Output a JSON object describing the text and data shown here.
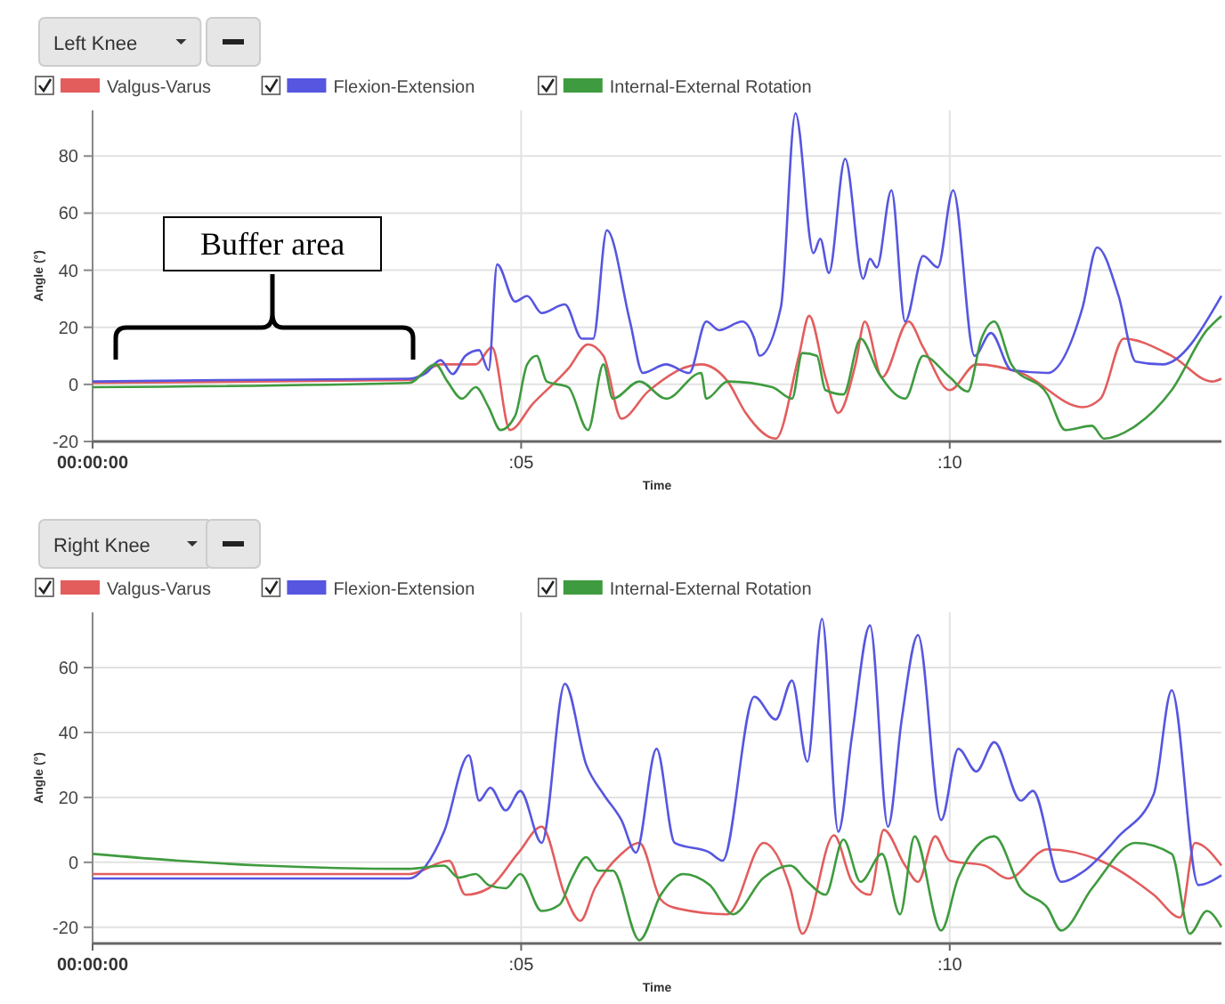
{
  "chart_data": [
    {
      "type": "line",
      "title": "Left Knee",
      "xlabel": "Time",
      "ylabel": "Angle (°)",
      "xlim": [
        0,
        13.17
      ],
      "xticks": [
        {
          "value": 0,
          "label": "00:00:00"
        },
        {
          "value": 5,
          "label": ":05"
        },
        {
          "value": 10,
          "label": ":10"
        }
      ],
      "ylim": [
        -20,
        96
      ],
      "yticks": [
        -20,
        0,
        20,
        40,
        60,
        80
      ],
      "grid": true,
      "legend": "top left",
      "annotations": [
        "Buffer area"
      ],
      "series": [
        {
          "name": "Valgus-Varus",
          "color": "#e35d5d",
          "x": [
            0,
            3.69,
            4.06,
            4.47,
            4.66,
            4.87,
            5.13,
            5.55,
            5.78,
            5.96,
            6.17,
            6.48,
            7.1,
            7.41,
            7.62,
            7.97,
            8.24,
            8.36,
            8.55,
            8.7,
            8.9,
            9.01,
            9.21,
            9.52,
            9.69,
            10.0,
            10.31,
            10.83,
            11.55,
            11.76,
            12.03,
            12.59,
            13.06,
            13.17
          ],
          "values": [
            0.5,
            1.5,
            7,
            7,
            13,
            -16,
            -7,
            5.5,
            14,
            10,
            -12,
            -2.5,
            7,
            1,
            -10,
            -19,
            10,
            24,
            2.5,
            -10,
            7,
            22,
            2.5,
            22,
            13,
            -2,
            7,
            4,
            -8,
            -5,
            16,
            10,
            1,
            2
          ]
        },
        {
          "name": "Flexion-Extension",
          "color": "#5656e0",
          "x": [
            0,
            1.5,
            3.69,
            3.89,
            4.06,
            4.2,
            4.35,
            4.51,
            4.62,
            4.72,
            4.93,
            5.07,
            5.24,
            5.51,
            5.71,
            5.84,
            6.0,
            6.27,
            6.42,
            6.69,
            6.96,
            7.16,
            7.31,
            7.58,
            7.72,
            7.78,
            8.03,
            8.2,
            8.41,
            8.49,
            8.59,
            8.78,
            8.99,
            9.07,
            9.15,
            9.32,
            9.48,
            9.69,
            9.86,
            10.04,
            10.29,
            10.48,
            10.72,
            11.14,
            11.55,
            11.72,
            11.97,
            12.17,
            12.48,
            13.17
          ],
          "values": [
            1,
            1.5,
            2,
            4,
            8.5,
            3.6,
            10,
            12,
            5,
            42,
            29,
            31,
            25,
            28,
            16,
            16,
            54,
            22,
            4,
            7,
            4,
            22,
            19,
            22,
            16,
            10,
            27,
            95,
            46,
            51,
            39,
            79,
            37,
            44,
            41,
            68,
            22,
            45,
            41,
            68,
            10,
            18,
            5,
            4,
            27,
            48,
            31,
            8,
            7,
            31
          ]
        },
        {
          "name": "Internal-External Rotation",
          "color": "#3f9b3f",
          "x": [
            0,
            3.69,
            4.0,
            4.14,
            4.31,
            4.47,
            4.62,
            4.76,
            4.93,
            5.07,
            5.18,
            5.3,
            5.55,
            5.78,
            5.96,
            6.07,
            6.38,
            6.69,
            7.1,
            7.16,
            7.41,
            7.93,
            8.16,
            8.28,
            8.45,
            8.55,
            8.76,
            8.96,
            9.17,
            9.48,
            9.69,
            10.0,
            10.21,
            10.37,
            10.52,
            10.72,
            11.14,
            11.35,
            11.66,
            11.8,
            12.17,
            12.59,
            13.0,
            13.17
          ],
          "values": [
            -1,
            0.5,
            7,
            1,
            -5,
            -1,
            -8,
            -16,
            -11,
            7,
            10,
            1,
            -1,
            -16,
            7,
            -5,
            1,
            -5,
            4,
            -5,
            1,
            -1,
            -5,
            11,
            10,
            -2,
            -3.5,
            16,
            4,
            -5,
            10,
            2.5,
            -2.5,
            16,
            22,
            7,
            -3.5,
            -16,
            -14.5,
            -19,
            -14.5,
            -2,
            19,
            24
          ]
        }
      ]
    },
    {
      "type": "line",
      "title": "Right Knee",
      "xlabel": "Time",
      "ylabel": "Angle (°)",
      "xlim": [
        0,
        13.17
      ],
      "xticks": [
        {
          "value": 0,
          "label": "00:00:00"
        },
        {
          "value": 5,
          "label": ":05"
        },
        {
          "value": 10,
          "label": ":10"
        }
      ],
      "ylim": [
        -25,
        77
      ],
      "yticks": [
        -20,
        0,
        20,
        40,
        60
      ],
      "grid": true,
      "legend": "top left",
      "series": [
        {
          "name": "Valgus-Varus",
          "color": "#e35d5d",
          "x": [
            0,
            3.69,
            4.16,
            4.35,
            4.62,
            4.97,
            5.24,
            5.51,
            5.69,
            5.86,
            6.17,
            6.38,
            6.63,
            6.79,
            7.41,
            7.83,
            8.14,
            8.28,
            8.65,
            8.86,
            9.07,
            9.23,
            9.48,
            9.63,
            9.83,
            10.0,
            10.41,
            10.68,
            11.14,
            11.76,
            12.38,
            12.69,
            12.86,
            13.17
          ],
          "values": [
            -3.6,
            -3.6,
            0.5,
            -10,
            -8,
            3,
            11,
            -10,
            -18,
            -8,
            2.6,
            6,
            -11.5,
            -14,
            -16,
            6,
            -8,
            -22,
            8.3,
            -6,
            -10,
            10,
            -1,
            -6,
            8,
            0.5,
            -1,
            -5,
            4,
            0.5,
            -10,
            -17,
            6,
            -1
          ]
        },
        {
          "name": "Flexion-Extension",
          "color": "#5656e0",
          "x": [
            0,
            3.69,
            3.89,
            4.1,
            4.39,
            4.51,
            4.64,
            4.82,
            4.99,
            5.24,
            5.51,
            5.76,
            5.96,
            6.17,
            6.34,
            6.58,
            6.79,
            7.2,
            7.35,
            7.72,
            7.97,
            8.16,
            8.34,
            8.51,
            8.7,
            8.86,
            9.07,
            9.28,
            9.44,
            9.63,
            9.9,
            10.1,
            10.31,
            10.52,
            10.83,
            10.97,
            11.3,
            11.55,
            11.97,
            12.38,
            12.59,
            12.9,
            13.17
          ],
          "values": [
            -5,
            -5,
            -1,
            9.4,
            33,
            19,
            23,
            16,
            22,
            6,
            55,
            30,
            21,
            13,
            3,
            35,
            6,
            3,
            0.5,
            51,
            44,
            56,
            31,
            75,
            9.4,
            39,
            73,
            11,
            44,
            70,
            13,
            35,
            28,
            37,
            19,
            22,
            -6,
            -3,
            8,
            21,
            53,
            -7,
            -4
          ]
        },
        {
          "name": "Internal-External Rotation",
          "color": "#3f9b3f",
          "x": [
            0,
            1,
            2,
            3.69,
            4.1,
            4.27,
            4.47,
            4.62,
            4.82,
            4.99,
            5.24,
            5.45,
            5.59,
            5.76,
            5.9,
            6.07,
            6.38,
            6.63,
            6.89,
            7.2,
            7.47,
            7.83,
            8.14,
            8.34,
            8.55,
            8.76,
            8.96,
            9.21,
            9.42,
            9.59,
            9.9,
            10.1,
            10.52,
            10.83,
            11.14,
            11.3,
            11.66,
            12.17,
            12.59,
            12.8,
            13.0,
            13.17
          ],
          "values": [
            2.6,
            0.5,
            -1,
            -2,
            -1,
            -4.7,
            -3.6,
            -7,
            -8,
            -3.6,
            -15,
            -13,
            -5,
            1.6,
            -2.6,
            -2.6,
            -24,
            -10,
            -3.6,
            -7,
            -16,
            -4.7,
            -1,
            -6,
            -10,
            7,
            -6,
            2.6,
            -16,
            8,
            -21,
            -4.7,
            8,
            -8,
            -14,
            -21,
            -8,
            6,
            2.6,
            -22,
            -15,
            -20
          ]
        }
      ]
    }
  ]
}
